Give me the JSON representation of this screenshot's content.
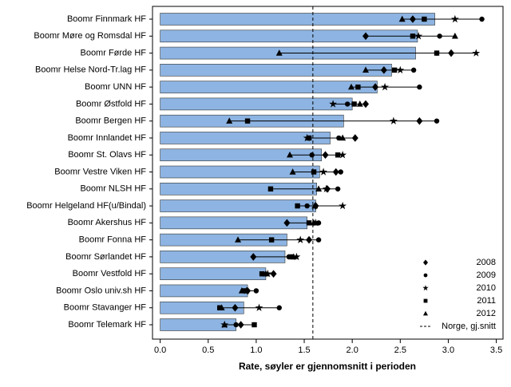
{
  "chart_data": {
    "type": "bar",
    "orientation": "horizontal",
    "x_label": "Rate, søyler er gjennomsnitt i perioden",
    "categories": [
      "Boomr Finnmark HF",
      "Boomr Møre og Romsdal HF",
      "Boomr Førde HF",
      "Boomr Helse Nord-Tr.lag HF",
      "Boomr UNN HF",
      "Boomr Østfold HF",
      "Boomr Bergen HF",
      "Boomr Innlandet HF",
      "Boomr St. Olavs HF",
      "Boomr Vestre Viken HF",
      "Boomr NLSH HF",
      "Boomr Helgeland HF(u/Bindal)",
      "Boomr Akershus HF",
      "Boomr Fonna HF",
      "Boomr Sørlandet HF",
      "Boomr Vestfold HF",
      "Boomr Oslo univ.sh HF",
      "Boomr Stavanger HF",
      "Boomr Telemark HF"
    ],
    "values": [
      2.86,
      2.68,
      2.66,
      2.41,
      2.26,
      2.0,
      1.91,
      1.77,
      1.68,
      1.66,
      1.63,
      1.62,
      1.53,
      1.32,
      1.3,
      1.1,
      0.91,
      0.87,
      0.79
    ],
    "color": "#8db4e2",
    "markers": [
      {
        "name": "2008",
        "marker": "diamond",
        "values": [
          2.63,
          2.14,
          3.03,
          2.33,
          2.24,
          2.14,
          2.7,
          2.03,
          1.72,
          1.83,
          1.74,
          1.62,
          1.32,
          1.55,
          0.97,
          1.18,
          0.91,
          0.78,
          0.84
        ]
      },
      {
        "name": "2009",
        "marker": "circle",
        "values": [
          3.35,
          2.91,
          2.88,
          2.64,
          2.7,
          1.95,
          2.88,
          1.86,
          1.58,
          1.88,
          1.85,
          1.53,
          1.65,
          1.65,
          1.34,
          1.07,
          1.0,
          1.24,
          0.79
        ]
      },
      {
        "name": "2010",
        "marker": "star",
        "values": [
          3.07,
          2.69,
          3.29,
          2.5,
          2.34,
          1.8,
          2.43,
          1.53,
          1.9,
          1.7,
          1.73,
          1.9,
          1.62,
          1.46,
          1.42,
          1.12,
          0.9,
          1.03,
          0.67
        ]
      },
      {
        "name": "2011",
        "marker": "square",
        "values": [
          2.75,
          2.63,
          2.88,
          2.44,
          2.06,
          2.02,
          0.91,
          1.55,
          1.85,
          1.6,
          1.15,
          1.43,
          1.55,
          1.16,
          1.36,
          1.06,
          0.88,
          0.62,
          0.98
        ]
      },
      {
        "name": "2012",
        "marker": "triangle",
        "values": [
          2.52,
          3.07,
          1.24,
          2.14,
          1.99,
          2.08,
          0.72,
          1.9,
          1.35,
          1.38,
          1.65,
          1.61,
          1.6,
          0.81,
          1.39,
          1.1,
          0.85,
          0.64,
          0.67
        ]
      }
    ],
    "reference_line": {
      "value": 1.59,
      "label": "Norge, gj.snitt"
    },
    "xlim": [
      -0.08,
      3.57
    ],
    "xticks": [
      {
        "value": 0,
        "label": "0.0"
      },
      {
        "value": 0.5,
        "label": "0.5"
      },
      {
        "value": 1,
        "label": "1.0"
      },
      {
        "value": 1.5,
        "label": "1.5"
      },
      {
        "value": 2,
        "label": "2.0"
      },
      {
        "value": 2.5,
        "label": "2.5"
      },
      {
        "value": 3,
        "label": "3.0"
      },
      {
        "value": 3.5,
        "label": "3.5"
      }
    ],
    "legend": "lower right"
  }
}
